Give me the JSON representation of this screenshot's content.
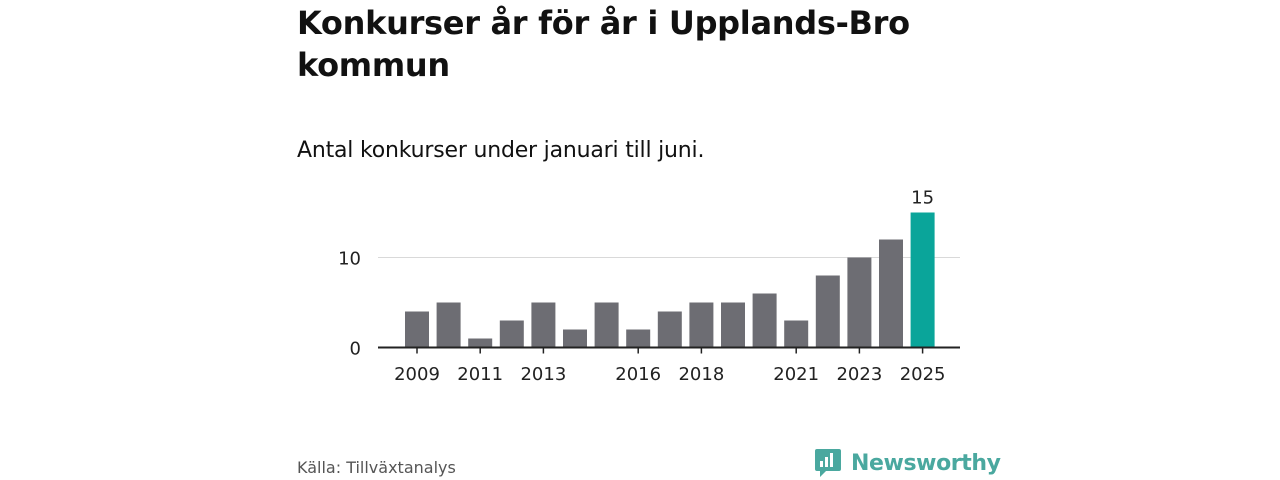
{
  "header": {
    "title": "Konkurser år för år i Upplands-Bro kommun",
    "subtitle": "Antal konkurser under januari till juni."
  },
  "footer": {
    "source": "Källa: Tillväxtanalys",
    "brand": "Newsworthy"
  },
  "colors": {
    "bar": "#6d6d73",
    "highlight": "#0aa59a",
    "axis": "#222222",
    "grid": "#d9d9d9",
    "brand": "#4aa89f"
  },
  "chart_data": {
    "type": "bar",
    "title": "Konkurser år för år i Upplands-Bro kommun",
    "subtitle": "Antal konkurser under januari till juni.",
    "xlabel": "",
    "ylabel": "",
    "categories": [
      "2009",
      "2010",
      "2011",
      "2012",
      "2013",
      "2014",
      "2015",
      "2016",
      "2017",
      "2018",
      "2019",
      "2020",
      "2021",
      "2022",
      "2023",
      "2024",
      "2025"
    ],
    "values": [
      4,
      5,
      1,
      3,
      5,
      2,
      5,
      2,
      4,
      5,
      5,
      6,
      3,
      8,
      10,
      12,
      15
    ],
    "x_tick_labels": [
      "2009",
      "",
      "2011",
      "",
      "2013",
      "",
      "",
      "2016",
      "",
      "2018",
      "",
      "",
      "2021",
      "",
      "2023",
      "",
      "2025"
    ],
    "y_ticks": [
      0,
      10
    ],
    "ylim": [
      0,
      15
    ],
    "highlight_index": 16,
    "highlight_label": "15",
    "grid": true,
    "legend": "none"
  }
}
